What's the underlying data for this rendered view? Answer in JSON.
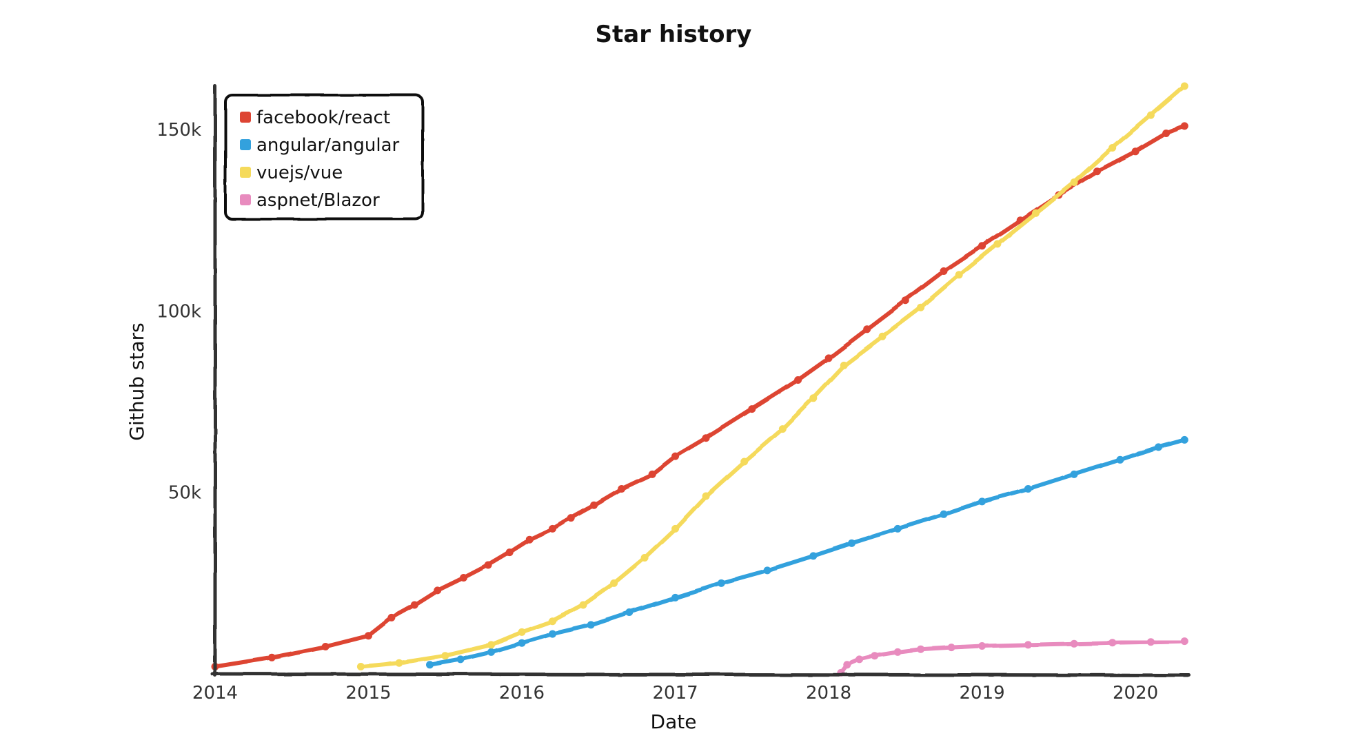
{
  "chart_data": {
    "type": "line",
    "title": "Star history",
    "xlabel": "Date",
    "ylabel": "Github stars",
    "xlim": [
      2014.0,
      2020.35
    ],
    "ylim": [
      0,
      162000
    ],
    "x_ticks": [
      {
        "value": 2014,
        "label": "2014"
      },
      {
        "value": 2015,
        "label": "2015"
      },
      {
        "value": 2016,
        "label": "2016"
      },
      {
        "value": 2017,
        "label": "2017"
      },
      {
        "value": 2018,
        "label": "2018"
      },
      {
        "value": 2019,
        "label": "2019"
      },
      {
        "value": 2020,
        "label": "2020"
      }
    ],
    "y_ticks": [
      {
        "value": 50000,
        "label": "50k"
      },
      {
        "value": 100000,
        "label": "100k"
      },
      {
        "value": 150000,
        "label": "150k"
      }
    ],
    "legend_position": "top-left",
    "grid": false,
    "series": [
      {
        "name": "facebook/react",
        "color": "#dd4433",
        "x": [
          2014.0,
          2014.37,
          2014.72,
          2015.0,
          2015.15,
          2015.3,
          2015.45,
          2015.62,
          2015.78,
          2015.92,
          2016.05,
          2016.2,
          2016.32,
          2016.47,
          2016.65,
          2016.85,
          2017.0,
          2017.2,
          2017.5,
          2017.8,
          2018.0,
          2018.25,
          2018.5,
          2018.75,
          2019.0,
          2019.25,
          2019.5,
          2019.75,
          2020.0,
          2020.2,
          2020.32
        ],
        "y": [
          2000,
          4500,
          7500,
          10500,
          15500,
          19000,
          23000,
          26500,
          30000,
          33500,
          37000,
          40000,
          43000,
          46500,
          51000,
          55000,
          60000,
          65000,
          73000,
          81000,
          87000,
          95000,
          103000,
          111000,
          118000,
          125000,
          132000,
          138500,
          144000,
          149000,
          151000
        ]
      },
      {
        "name": "angular/angular",
        "color": "#33a1dd",
        "x": [
          2015.4,
          2015.6,
          2015.8,
          2016.0,
          2016.2,
          2016.45,
          2016.7,
          2017.0,
          2017.3,
          2017.6,
          2017.9,
          2018.15,
          2018.45,
          2018.75,
          2019.0,
          2019.3,
          2019.6,
          2019.9,
          2020.15,
          2020.32
        ],
        "y": [
          2500,
          4000,
          6000,
          8500,
          11000,
          13500,
          17000,
          21000,
          25000,
          28500,
          32500,
          36000,
          40000,
          44000,
          47500,
          51000,
          55000,
          59000,
          62500,
          64500
        ]
      },
      {
        "name": "vuejs/vue",
        "color": "#f5da5b",
        "x": [
          2014.95,
          2015.2,
          2015.5,
          2015.8,
          2016.0,
          2016.2,
          2016.4,
          2016.6,
          2016.8,
          2017.0,
          2017.2,
          2017.45,
          2017.7,
          2017.9,
          2018.1,
          2018.35,
          2018.6,
          2018.85,
          2019.1,
          2019.35,
          2019.6,
          2019.85,
          2020.1,
          2020.32
        ],
        "y": [
          2000,
          3000,
          5000,
          8000,
          11500,
          14500,
          19000,
          25000,
          32000,
          40000,
          49000,
          58500,
          67500,
          76000,
          85000,
          93000,
          101000,
          110000,
          118500,
          127000,
          135500,
          145000,
          154000,
          162000
        ]
      },
      {
        "name": "aspnet/Blazor",
        "color": "#e88bbe",
        "x": [
          2018.08,
          2018.12,
          2018.2,
          2018.3,
          2018.45,
          2018.6,
          2018.8,
          2019.0,
          2019.3,
          2019.6,
          2019.85,
          2020.1,
          2020.32
        ],
        "y": [
          300,
          2500,
          4000,
          5000,
          6000,
          6800,
          7300,
          7700,
          8000,
          8300,
          8600,
          8800,
          9000
        ]
      }
    ]
  }
}
